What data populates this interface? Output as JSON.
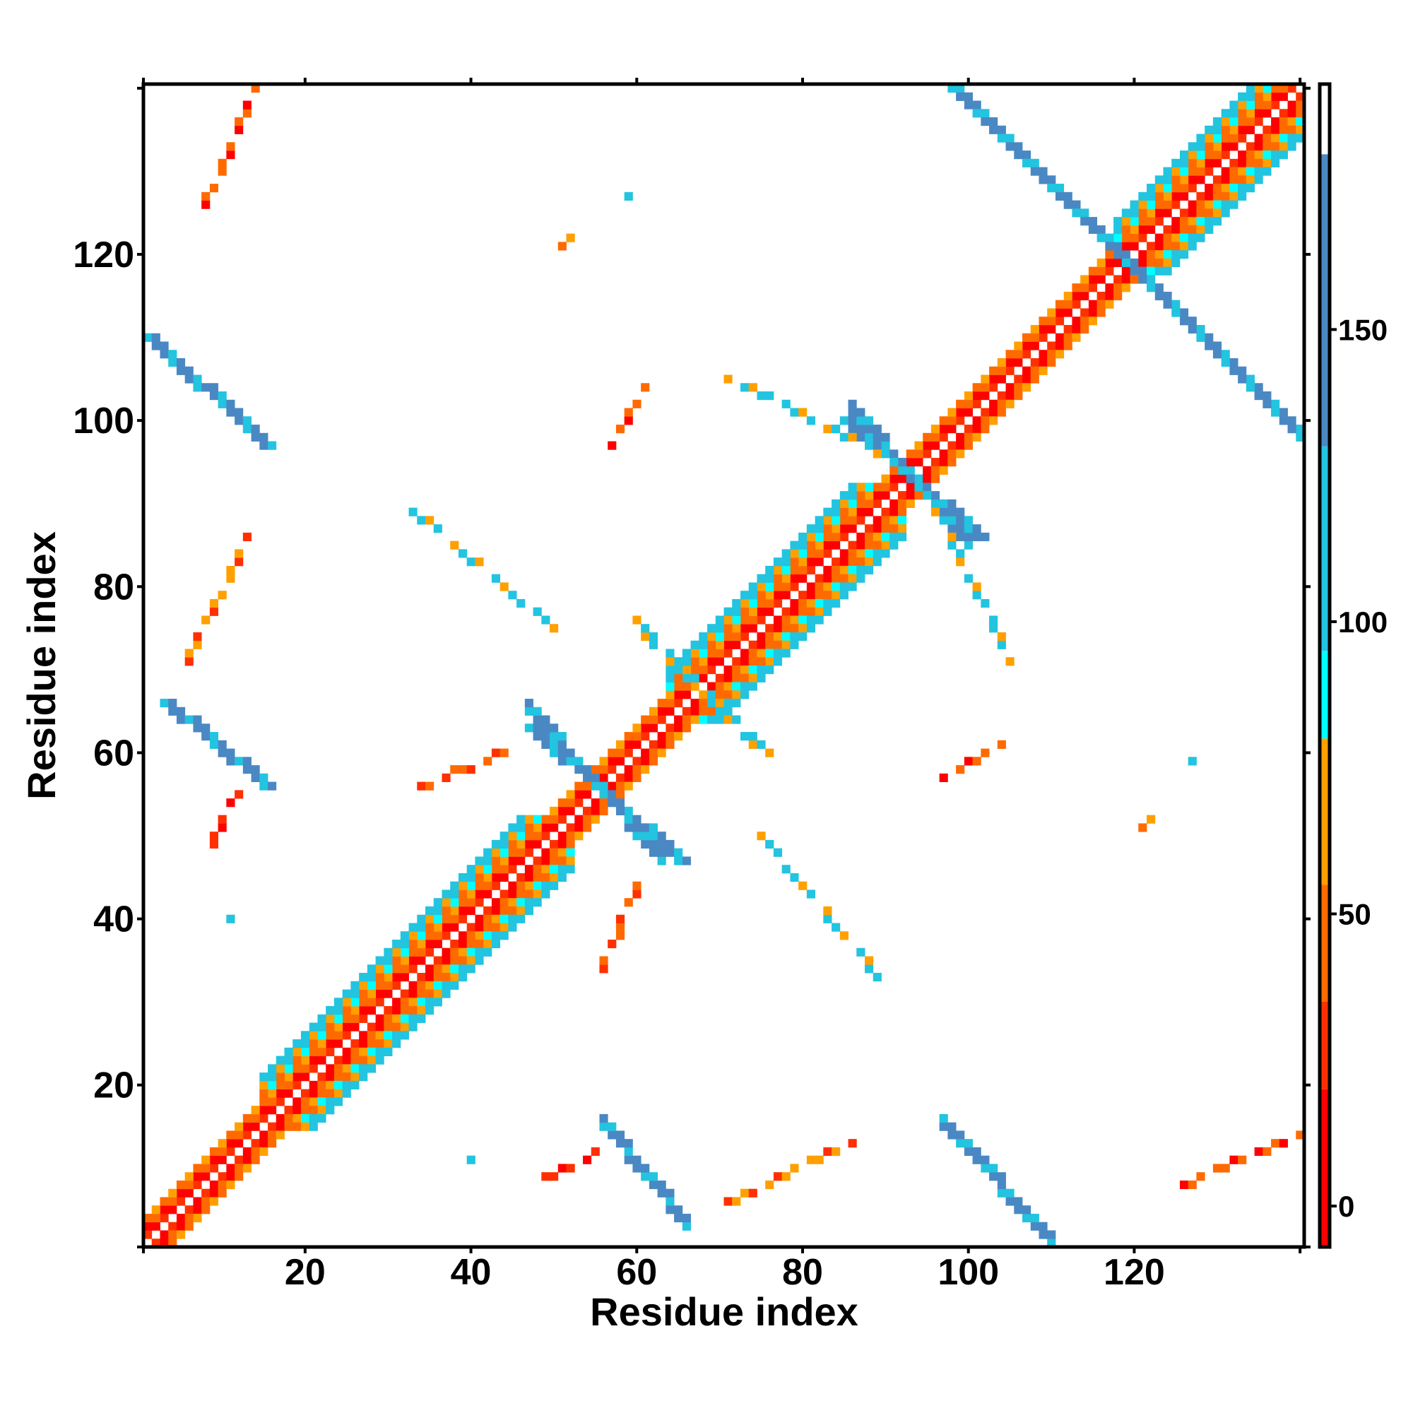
{
  "chart_data": {
    "type": "heatmap",
    "title": "",
    "xlabel": "Residue index",
    "ylabel": "Residue index",
    "n_residues": 140,
    "xlim": [
      0.5,
      140.5
    ],
    "ylim": [
      0.5,
      140.5
    ],
    "xticks": [
      20,
      40,
      60,
      80,
      100,
      120
    ],
    "yticks": [
      20,
      40,
      60,
      80,
      100,
      120
    ],
    "xtick_labels": [
      "20",
      "40",
      "60",
      "80",
      "100",
      "120"
    ],
    "ytick_labels": [
      "20",
      "40",
      "60",
      "80",
      "100",
      "120"
    ],
    "symmetric": true,
    "colorbar": {
      "range": [
        -7,
        192
      ],
      "ticks": [
        0,
        50,
        100,
        150
      ],
      "tick_labels": [
        "0",
        "50",
        "100",
        "150"
      ],
      "bands": [
        {
          "from": -7,
          "to": 20,
          "color": "#ff0000"
        },
        {
          "from": 20,
          "to": 35,
          "color": "#ff3000"
        },
        {
          "from": 35,
          "to": 55,
          "color": "#ff6a00"
        },
        {
          "from": 55,
          "to": 80,
          "color": "#ffa000"
        },
        {
          "from": 80,
          "to": 95,
          "color": "#00ffff"
        },
        {
          "from": 95,
          "to": 130,
          "color": "#22c4e0"
        },
        {
          "from": 130,
          "to": 180,
          "color": "#4a88c4"
        },
        {
          "from": 180,
          "to": 192,
          "color": "#ffffff"
        }
      ]
    },
    "diagonal_bands": [
      {
        "offset": 1,
        "from": 1,
        "to": 140,
        "values": [
          5,
          25
        ]
      },
      {
        "offset": 2,
        "from": 1,
        "to": 140,
        "values": [
          45,
          10
        ]
      },
      {
        "offset": 3,
        "from": 1,
        "to": 140,
        "values": [
          65,
          40
        ]
      }
    ],
    "helices": [
      {
        "from": 15,
        "to": 52,
        "offsets": [
          {
            "offset": 4,
            "values": [
              90,
              45
            ]
          },
          {
            "offset": 5,
            "values": [
              110,
              70
            ]
          },
          {
            "offset": 6,
            "values": [
              100,
              120
            ]
          }
        ]
      },
      {
        "from": 64,
        "to": 92,
        "offsets": [
          {
            "offset": 4,
            "values": [
              90,
              45
            ]
          },
          {
            "offset": 5,
            "values": [
              110,
              70
            ]
          },
          {
            "offset": 6,
            "values": [
              100,
              120
            ]
          }
        ]
      },
      {
        "from": 118,
        "to": 140,
        "offsets": [
          {
            "offset": 4,
            "values": [
              90,
              45
            ]
          },
          {
            "offset": 5,
            "values": [
              110,
              70
            ]
          },
          {
            "offset": 6,
            "values": [
              100,
              120
            ]
          }
        ]
      }
    ],
    "contact_segments": [
      {
        "from": [
          1,
          110
        ],
        "to": [
          15,
          97
        ],
        "width": 2,
        "value": 150,
        "sparse": false
      },
      {
        "from": [
          3,
          66
        ],
        "to": [
          15,
          56
        ],
        "width": 2,
        "value": 150,
        "sparse": false
      },
      {
        "from": [
          47,
          63
        ],
        "to": [
          65,
          47
        ],
        "width": 2,
        "value": 140,
        "sparse": false
      },
      {
        "from": [
          98,
          140
        ],
        "to": [
          140,
          98
        ],
        "width": 2,
        "value": 135,
        "sparse": false
      },
      {
        "from": [
          85,
          100
        ],
        "to": [
          101,
          86
        ],
        "width": 2,
        "value": 130,
        "sparse": false
      },
      {
        "from": [
          32,
          90
        ],
        "to": [
          50,
          75
        ],
        "width": 1,
        "value": 105,
        "sparse": true
      },
      {
        "from": [
          71,
          105
        ],
        "to": [
          92,
          95
        ],
        "width": 1,
        "value": 105,
        "sparse": true
      },
      {
        "from": [
          61,
          74
        ],
        "to": [
          76,
          60
        ],
        "width": 1,
        "value": 105,
        "sparse": true
      },
      {
        "from": [
          8,
          126
        ],
        "to": [
          14,
          140
        ],
        "width": 1,
        "value": 45,
        "sparse": true
      },
      {
        "from": [
          6,
          71
        ],
        "to": [
          13,
          86
        ],
        "width": 1,
        "value": 55,
        "sparse": true
      },
      {
        "from": [
          8,
          48
        ],
        "to": [
          12,
          55
        ],
        "width": 1,
        "value": 30,
        "sparse": true
      },
      {
        "from": [
          57,
          97
        ],
        "to": [
          61,
          104
        ],
        "width": 1,
        "value": 40,
        "sparse": true
      },
      {
        "from": [
          34,
          56
        ],
        "to": [
          44,
          60
        ],
        "width": 1,
        "value": 50,
        "sparse": true
      },
      {
        "from": [
          51,
          121
        ],
        "to": [
          52,
          122
        ],
        "width": 1,
        "value": 65,
        "sparse": false
      },
      {
        "from": [
          11,
          40
        ],
        "to": [
          11,
          40
        ],
        "width": 1,
        "value": 150,
        "sparse": false
      },
      {
        "from": [
          59,
          127
        ],
        "to": [
          59,
          127
        ],
        "width": 1,
        "value": 150,
        "sparse": false
      }
    ]
  }
}
